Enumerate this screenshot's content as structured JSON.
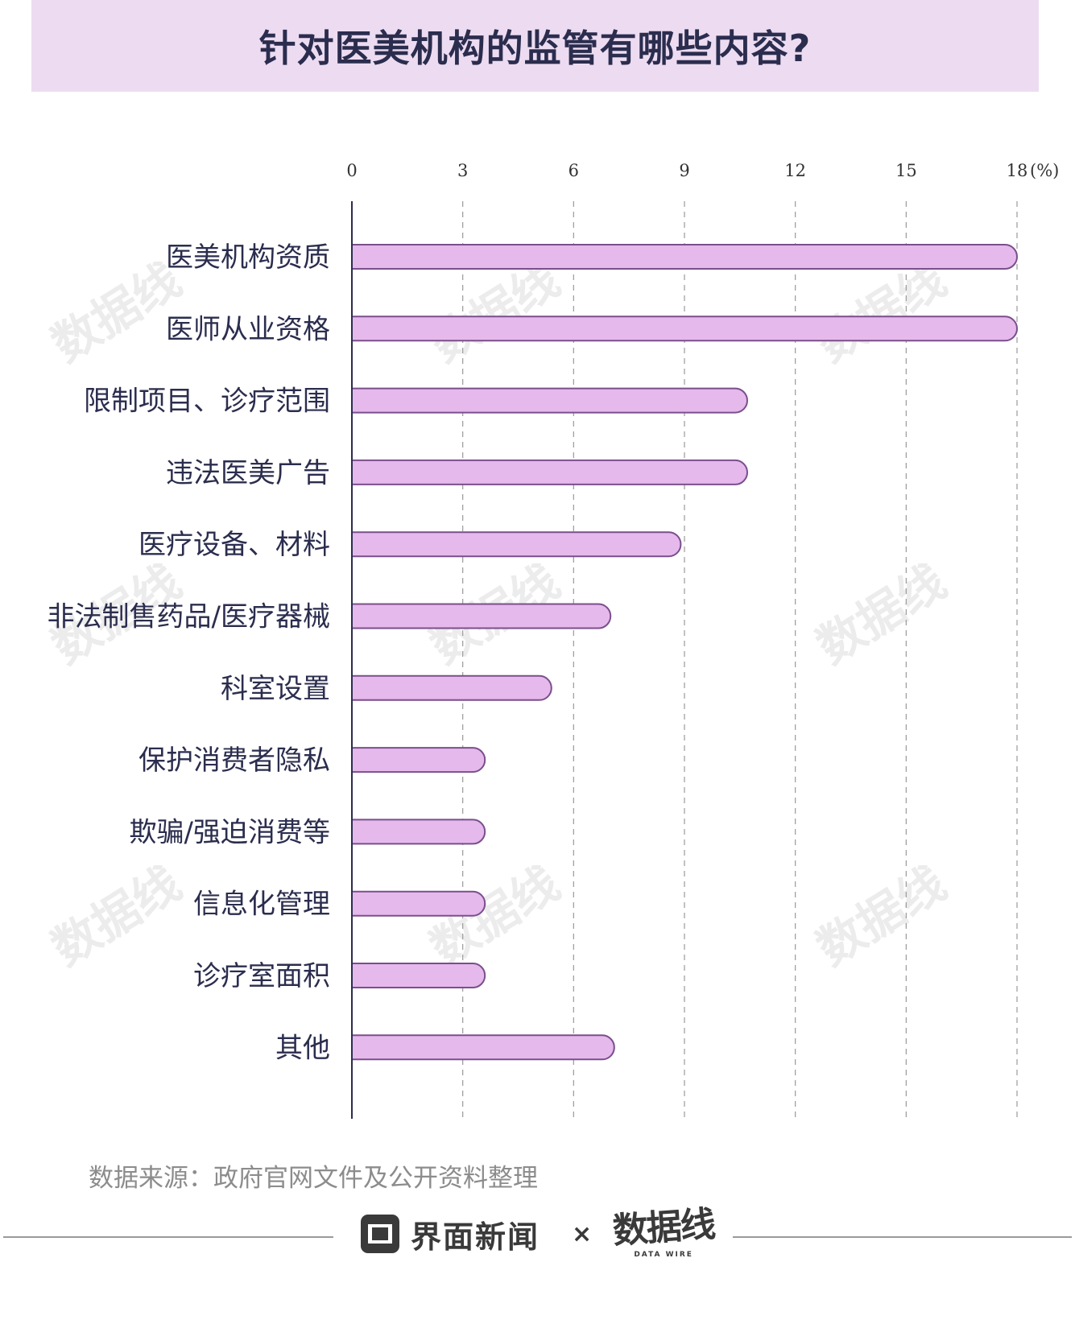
{
  "title": "针对医美机构的监管有哪些内容?",
  "source": "数据来源：政府官网文件及公开资料整理",
  "footer": {
    "brand": "界面新闻",
    "separator": "×",
    "partner": "数据线",
    "partner_sub": "DATA WIRE"
  },
  "watermark": "数据线",
  "colors": {
    "title_band": "#eddcf1",
    "bar_fill": "#e6b9ec",
    "bar_stroke": "#7a4f8c",
    "text_dark": "#2b2d4e",
    "grid": "#9a9a9a"
  },
  "chart_data": {
    "type": "bar",
    "orientation": "horizontal",
    "categories": [
      "医美机构资质",
      "医师从业资格",
      "限制项目、诊疗范围",
      "违法医美广告",
      "医疗设备、材料",
      "非法制售药品/医疗器械",
      "科室设置",
      "保护消费者隐私",
      "欺骗/强迫消费等",
      "信息化管理",
      "诊疗室面积",
      "其他"
    ],
    "values": [
      18,
      18,
      10.7,
      10.7,
      8.9,
      7.0,
      5.4,
      3.6,
      3.6,
      3.6,
      3.6,
      7.1
    ],
    "xlim": [
      0,
      18
    ],
    "ticks": [
      "0",
      "3",
      "6",
      "9",
      "12",
      "15",
      "18"
    ],
    "unit_label": "(%)",
    "grid": "vertical dashed",
    "axis_position": "top"
  }
}
